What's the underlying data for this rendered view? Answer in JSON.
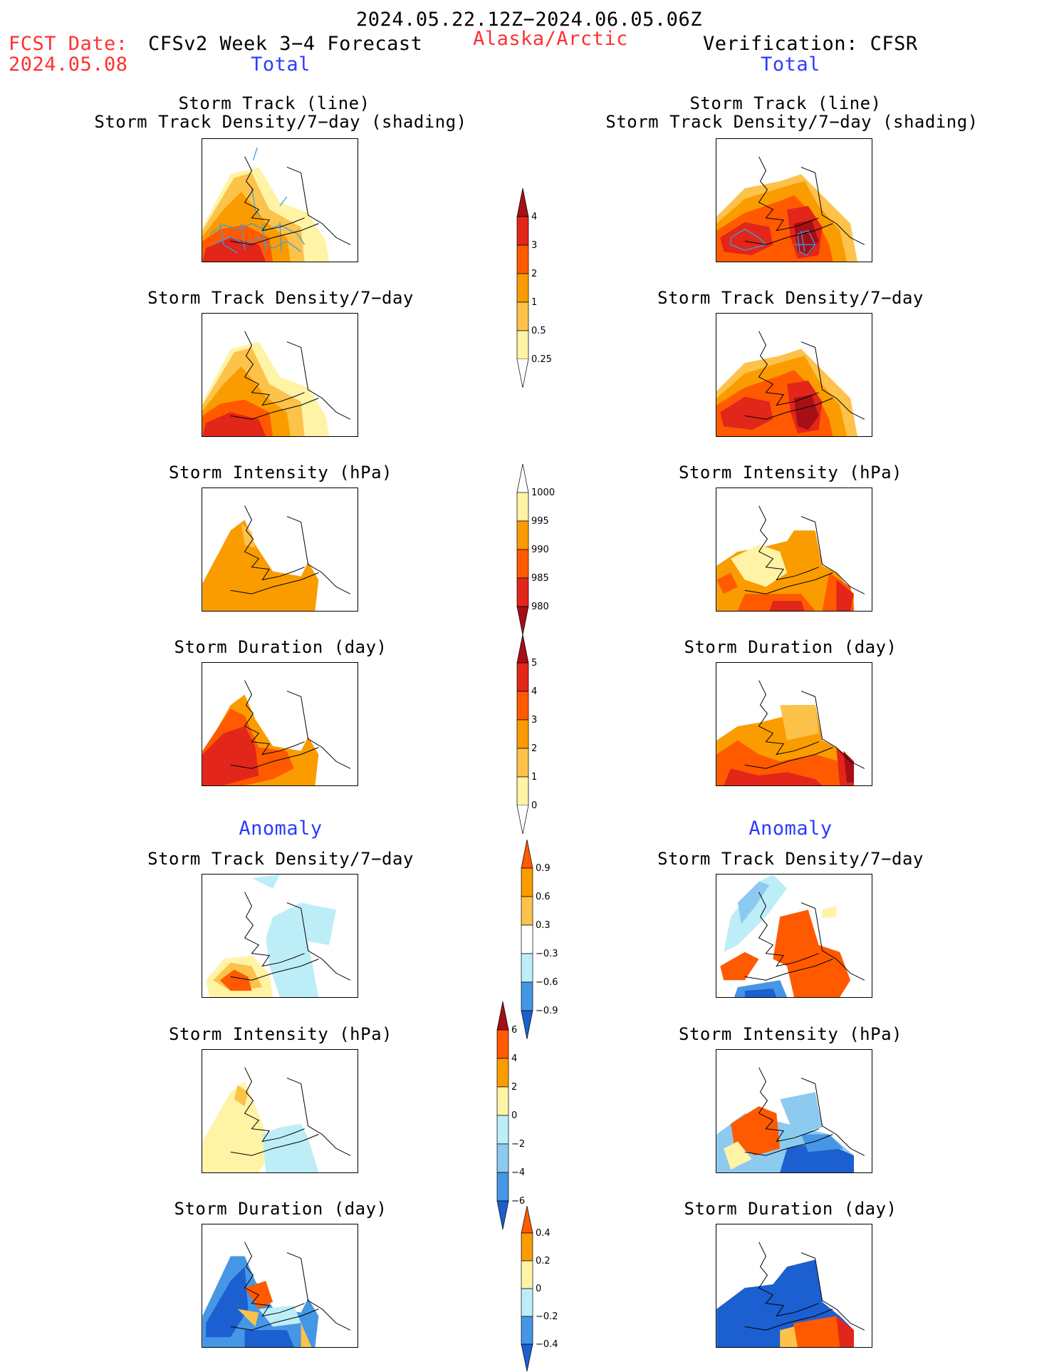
{
  "header": {
    "date_range": "2024.05.22.12Z−2024.06.05.06Z",
    "fcst_label": "FCST Date:",
    "fcst_date": "2024.05.08",
    "forecast_title": "CFSv2 Week 3−4 Forecast",
    "region": "Alaska/Arctic",
    "verification": "Verification: CFSR"
  },
  "sections": {
    "total": "Total",
    "anomaly": "Anomaly"
  },
  "panel_titles": {
    "track_line": "Storm Track (line)",
    "track_shading": "Storm Track Density/7−day (shading)",
    "density": "Storm Track Density/7−day",
    "intensity": "Storm Intensity (hPa)",
    "duration": "Storm Duration (day)"
  },
  "colorbars": {
    "density_total": {
      "ticks": [
        "4",
        "3",
        "2",
        "1",
        "0.5",
        "0.25"
      ]
    },
    "intensity_total": {
      "ticks": [
        "1000",
        "995",
        "990",
        "985",
        "980"
      ]
    },
    "duration_total": {
      "ticks": [
        "5",
        "4",
        "3",
        "2",
        "1",
        "0"
      ]
    },
    "density_anom": {
      "ticks": [
        "0.9",
        "0.6",
        "0.3",
        "−0.3",
        "−0.6",
        "−0.9"
      ]
    },
    "intensity_anom": {
      "ticks": [
        "6",
        "4",
        "2",
        "0",
        "−2",
        "−4",
        "−6"
      ]
    },
    "duration_anom": {
      "ticks": [
        "0.4",
        "0.2",
        "0",
        "−0.2",
        "−0.4"
      ]
    }
  },
  "colors": {
    "dark_red": "#a50f15",
    "red": "#e2261a",
    "orange_red": "#ff5a00",
    "orange": "#fa9c00",
    "light_orange": "#fcc24a",
    "pale_yellow": "#fff3a6",
    "light_blue": "#bdeef8",
    "sky_blue": "#8dcaf0",
    "mid_blue": "#4597e6",
    "blue": "#1b5fd0",
    "track_line": "#3aa0e0"
  }
}
